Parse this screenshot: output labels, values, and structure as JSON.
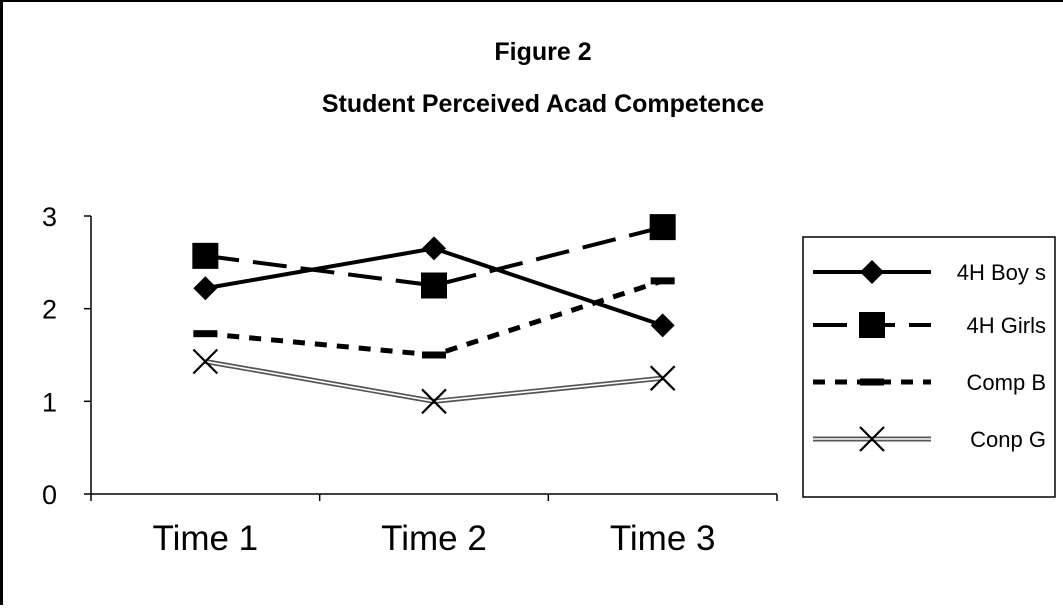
{
  "chart_data": {
    "type": "line",
    "title": "Figure 2",
    "subtitle": "Student Perceived Acad Competence",
    "xlabel": "",
    "ylabel": "",
    "categories": [
      "Time 1",
      "Time 2",
      "Time 3"
    ],
    "ylim": [
      0,
      3
    ],
    "yticks": [
      "0",
      "1",
      "2",
      "3"
    ],
    "grid": false,
    "legend_position": "right",
    "series": [
      {
        "name": "4H Boy s",
        "values": [
          2.22,
          2.65,
          1.82
        ],
        "line_style": "solid",
        "marker": "diamond",
        "color": "#000000"
      },
      {
        "name": "4H Girls",
        "values": [
          2.57,
          2.25,
          2.88
        ],
        "line_style": "long-dash",
        "marker": "square",
        "color": "#000000"
      },
      {
        "name": "Comp B",
        "values": [
          1.73,
          1.5,
          2.3
        ],
        "line_style": "short-dash",
        "marker": "dash",
        "color": "#000000"
      },
      {
        "name": "Conp G",
        "values": [
          1.43,
          1.0,
          1.25
        ],
        "line_style": "double",
        "marker": "x",
        "color": "#000000"
      }
    ]
  }
}
